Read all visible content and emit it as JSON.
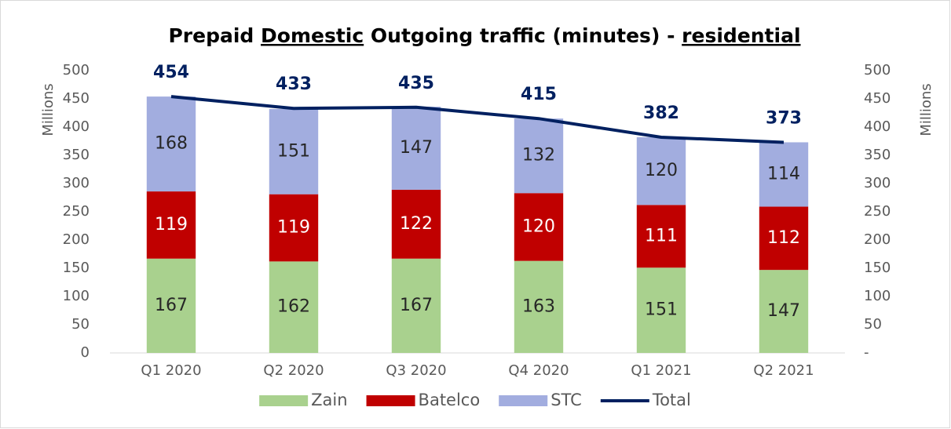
{
  "chart_data": {
    "type": "bar",
    "stacked": true,
    "title": [
      {
        "text": "Prepaid",
        "underline": false
      },
      {
        "text": "Domestic",
        "underline": true
      },
      {
        "text": "Outgoing traffic (minutes) -",
        "underline": false
      },
      {
        "text": "residential",
        "underline": true
      }
    ],
    "ylabel": "Millions",
    "y2label": "Millions",
    "categories": [
      "Q1 2020",
      "Q2 2020",
      "Q3 2020",
      "Q4 2020",
      "Q1 2021",
      "Q2 2021"
    ],
    "series": [
      {
        "name": "Zain",
        "color": "#a9d18e",
        "label_color": "#262626",
        "values": [
          167,
          162,
          167,
          163,
          151,
          147
        ]
      },
      {
        "name": "Batelco",
        "color": "#c00000",
        "label_color": "#ffffff",
        "values": [
          119,
          119,
          122,
          120,
          111,
          112
        ]
      },
      {
        "name": "STC",
        "color": "#a2addf",
        "label_color": "#262626",
        "values": [
          168,
          151,
          147,
          132,
          120,
          114
        ]
      },
      {
        "name": "Total",
        "type": "line",
        "axis": "y2",
        "color": "#002060",
        "label_color": "#002060",
        "values": [
          454,
          433,
          435,
          415,
          382,
          373
        ]
      }
    ],
    "ylim": [
      0,
      500
    ],
    "yticks": [
      0,
      50,
      100,
      150,
      200,
      250,
      300,
      350,
      400,
      450,
      500
    ],
    "y2lim": [
      0,
      500
    ],
    "y2ticks": [
      {
        "value": 0,
        "label": "-"
      },
      50,
      100,
      150,
      200,
      250,
      300,
      350,
      400,
      450,
      500
    ],
    "legend": "bottom"
  }
}
